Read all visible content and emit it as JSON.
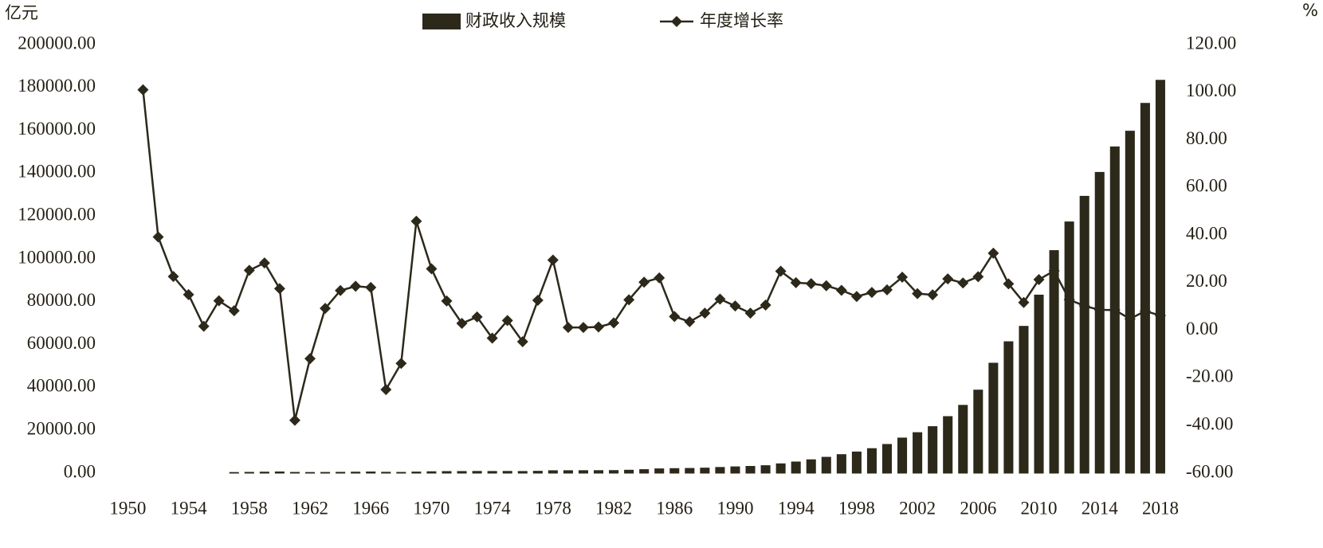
{
  "chart_data": {
    "type": "combo",
    "y_unit": "亿元",
    "y2_unit": "%",
    "legend": "top",
    "x": [
      1950,
      1951,
      1952,
      1953,
      1954,
      1955,
      1956,
      1957,
      1958,
      1959,
      1960,
      1961,
      1962,
      1963,
      1964,
      1965,
      1966,
      1967,
      1968,
      1969,
      1970,
      1971,
      1972,
      1973,
      1974,
      1975,
      1976,
      1977,
      1978,
      1979,
      1980,
      1981,
      1982,
      1983,
      1984,
      1985,
      1986,
      1987,
      1988,
      1989,
      1990,
      1991,
      1992,
      1993,
      1994,
      1995,
      1996,
      1997,
      1998,
      1999,
      2000,
      2001,
      2002,
      2003,
      2004,
      2005,
      2006,
      2007,
      2008,
      2009,
      2010,
      2011,
      2012,
      2013,
      2014,
      2015,
      2016,
      2017,
      2018
    ],
    "xlim": [
      1948.3,
      2019
    ],
    "xticks": [
      1950,
      1954,
      1958,
      1962,
      1966,
      1970,
      1974,
      1978,
      1982,
      1986,
      1990,
      1994,
      1998,
      2002,
      2006,
      2010,
      2014,
      2018
    ],
    "ylim": [
      0,
      200000
    ],
    "yticks": [
      {
        "value": 0,
        "label": "0.00"
      },
      {
        "value": 20000,
        "label": "20000.00"
      },
      {
        "value": 40000,
        "label": "40000.00"
      },
      {
        "value": 60000,
        "label": "60000.00"
      },
      {
        "value": 80000,
        "label": "80000.00"
      },
      {
        "value": 100000,
        "label": "100000.00"
      },
      {
        "value": 120000,
        "label": "120000.00"
      },
      {
        "value": 140000,
        "label": "140000.00"
      },
      {
        "value": 160000,
        "label": "160000.00"
      },
      {
        "value": 180000,
        "label": "180000.00"
      },
      {
        "value": 200000,
        "label": "200000.00"
      }
    ],
    "y2lim": [
      -60,
      120
    ],
    "y2ticks": [
      {
        "value": -60,
        "label": "-60.00"
      },
      {
        "value": -40,
        "label": "-40.00"
      },
      {
        "value": -20,
        "label": "-20.00"
      },
      {
        "value": 0,
        "label": "0.00"
      },
      {
        "value": 20,
        "label": "20.00"
      },
      {
        "value": 40,
        "label": "40.00"
      },
      {
        "value": 60,
        "label": "60.00"
      },
      {
        "value": 80,
        "label": "80.00"
      },
      {
        "value": 100,
        "label": "100.00"
      },
      {
        "value": 120,
        "label": "120.00"
      }
    ],
    "grid": false,
    "series": [
      {
        "name": "财政收入规模",
        "type": "bar",
        "color": "#2c291b",
        "values": [
          null,
          null,
          null,
          null,
          null,
          null,
          null,
          303.2,
          379.62,
          487.12,
          572.29,
          356.06,
          313.55,
          342.25,
          399.54,
          473.32,
          558.71,
          419.36,
          361.25,
          526.76,
          662.9,
          744.73,
          766.56,
          809.67,
          783.14,
          815.61,
          776.58,
          874.46,
          1132.26,
          1146.38,
          1159.93,
          1175.79,
          1212.33,
          1366.95,
          1642.86,
          2004.82,
          2122.01,
          2199.35,
          2357.24,
          2664.9,
          2937.1,
          3149.48,
          3483.37,
          4348.95,
          5218.1,
          6242.2,
          7407.99,
          8651.14,
          9875.95,
          11444.08,
          13395.23,
          16386.04,
          18903.64,
          21715.25,
          26396.47,
          31649.29,
          38760.2,
          51321.78,
          61330.35,
          68518.3,
          83101.51,
          103874.43,
          117253.52,
          129209.64,
          140370.03,
          152269.23,
          159604.97,
          172592.77,
          183359.84
        ]
      },
      {
        "name": "年度增长率",
        "type": "line",
        "axis": "y2",
        "color": "#2c291b",
        "values": [
          null,
          101.0,
          39.2,
          22.6,
          15.0,
          1.7,
          12.4,
          8.2,
          25.2,
          28.3,
          17.5,
          -37.8,
          -11.9,
          9.2,
          16.7,
          18.5,
          18.0,
          -24.9,
          -13.9,
          45.8,
          25.8,
          12.3,
          2.9,
          5.6,
          -3.3,
          4.1,
          -4.8,
          12.6,
          29.5,
          1.2,
          1.2,
          1.4,
          3.1,
          12.8,
          20.2,
          22.0,
          5.8,
          3.6,
          7.2,
          13.1,
          10.2,
          7.2,
          10.6,
          24.8,
          20.0,
          19.6,
          18.7,
          16.8,
          14.2,
          15.9,
          17.0,
          22.3,
          15.4,
          14.9,
          21.6,
          19.9,
          22.5,
          32.4,
          19.5,
          11.7,
          21.3,
          25.0,
          12.9,
          10.2,
          8.6,
          8.5,
          4.8,
          8.1,
          6.2
        ]
      }
    ]
  }
}
